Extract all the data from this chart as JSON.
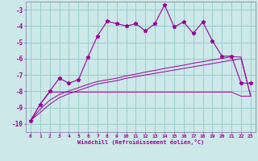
{
  "xlabel": "Windchill (Refroidissement éolien,°C)",
  "background_color": "#cce8e8",
  "grid_color": "#99cccc",
  "line_color": "#990099",
  "x_values": [
    0,
    1,
    2,
    3,
    4,
    5,
    6,
    7,
    8,
    9,
    10,
    11,
    12,
    13,
    14,
    15,
    16,
    17,
    18,
    19,
    20,
    21,
    22,
    23
  ],
  "line1_y": [
    -9.8,
    -8.8,
    -8.0,
    -7.2,
    -7.5,
    -7.3,
    -5.9,
    -4.6,
    -3.7,
    -3.85,
    -4.0,
    -3.85,
    -4.3,
    -3.85,
    -2.7,
    -4.05,
    -3.75,
    -4.45,
    -3.75,
    -4.9,
    -5.85,
    -5.85,
    -7.5,
    -7.5
  ],
  "line2_y": [
    -9.8,
    -8.8,
    -8.05,
    -8.05,
    -8.05,
    -8.05,
    -8.05,
    -8.05,
    -8.05,
    -8.05,
    -8.05,
    -8.05,
    -8.05,
    -8.05,
    -8.05,
    -8.05,
    -8.05,
    -8.05,
    -8.05,
    -8.05,
    -8.05,
    -8.05,
    -8.3,
    -8.3
  ],
  "line3_y": [
    -9.8,
    -9.3,
    -8.8,
    -8.4,
    -8.15,
    -7.95,
    -7.75,
    -7.55,
    -7.45,
    -7.35,
    -7.2,
    -7.1,
    -7.0,
    -6.9,
    -6.8,
    -6.7,
    -6.6,
    -6.5,
    -6.4,
    -6.3,
    -6.2,
    -6.1,
    -6.0,
    -8.3
  ],
  "line4_y": [
    -9.8,
    -9.1,
    -8.55,
    -8.2,
    -7.98,
    -7.78,
    -7.58,
    -7.4,
    -7.3,
    -7.2,
    -7.05,
    -6.95,
    -6.82,
    -6.72,
    -6.6,
    -6.5,
    -6.4,
    -6.28,
    -6.18,
    -6.08,
    -5.98,
    -5.88,
    -5.9,
    -8.3
  ],
  "ylim": [
    -10.5,
    -2.5
  ],
  "xlim": [
    -0.5,
    23.5
  ],
  "yticks": [
    -10,
    -9,
    -8,
    -7,
    -6,
    -5,
    -4,
    -3
  ],
  "xticks": [
    0,
    1,
    2,
    3,
    4,
    5,
    6,
    7,
    8,
    9,
    10,
    11,
    12,
    13,
    14,
    15,
    16,
    17,
    18,
    19,
    20,
    21,
    22,
    23
  ]
}
